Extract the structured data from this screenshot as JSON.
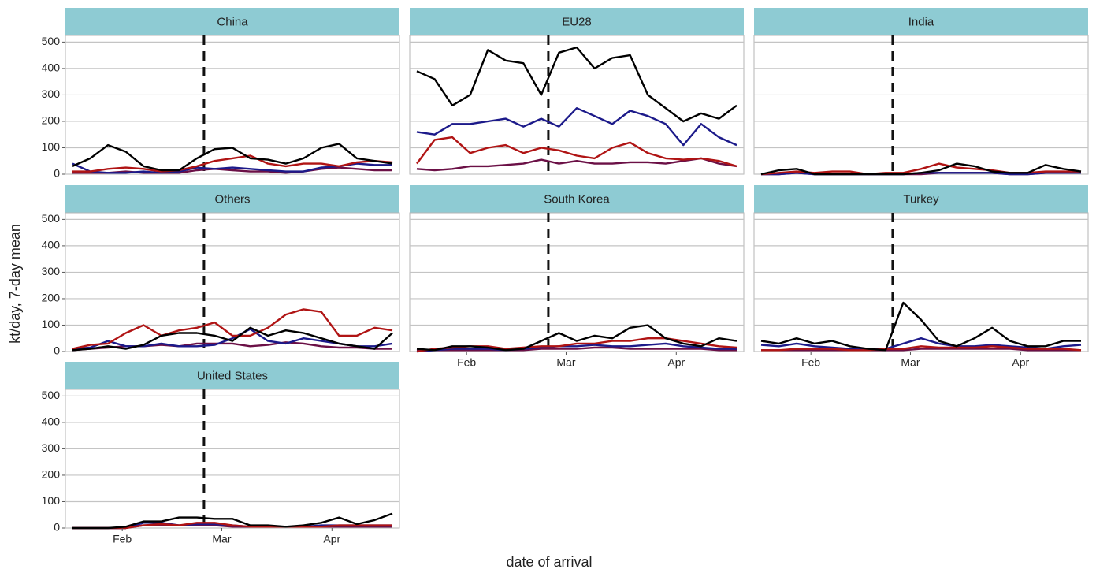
{
  "chart_data": {
    "type": "line",
    "xlabel": "date of arrival",
    "ylabel": "kt/day, 7-day mean",
    "xlim": [
      16,
      110
    ],
    "ylim": [
      0,
      525
    ],
    "xticks": [
      {
        "value": 32,
        "label": "Feb"
      },
      {
        "value": 60,
        "label": "Mar"
      },
      {
        "value": 91,
        "label": "Apr"
      }
    ],
    "yticks": [
      0,
      100,
      200,
      300,
      400,
      500
    ],
    "grid": true,
    "vline": 55,
    "x": [
      18,
      23,
      28,
      33,
      38,
      43,
      48,
      53,
      58,
      63,
      68,
      73,
      78,
      83,
      88,
      93,
      98,
      103,
      108
    ],
    "panels": [
      {
        "title": "China",
        "series": [
          {
            "color": "#6b1046",
            "values": [
              5,
              5,
              5,
              10,
              5,
              5,
              5,
              15,
              20,
              15,
              10,
              10,
              5,
              10,
              20,
              25,
              20,
              15,
              15
            ]
          },
          {
            "color": "#1c1a8a",
            "values": [
              40,
              10,
              5,
              5,
              10,
              5,
              10,
              25,
              20,
              25,
              20,
              15,
              10,
              10,
              25,
              30,
              40,
              35,
              35
            ]
          },
          {
            "color": "#b01414",
            "values": [
              10,
              10,
              20,
              25,
              20,
              10,
              15,
              30,
              50,
              60,
              70,
              40,
              30,
              40,
              40,
              30,
              45,
              50,
              45
            ]
          },
          {
            "color": "#000000",
            "values": [
              30,
              60,
              110,
              85,
              30,
              15,
              15,
              60,
              95,
              100,
              60,
              55,
              40,
              60,
              100,
              115,
              60,
              50,
              40
            ]
          }
        ]
      },
      {
        "title": "EU28",
        "series": [
          {
            "color": "#6b1046",
            "values": [
              20,
              15,
              20,
              30,
              30,
              35,
              40,
              55,
              40,
              50,
              40,
              40,
              45,
              45,
              40,
              50,
              60,
              40,
              30
            ]
          },
          {
            "color": "#1c1a8a",
            "values": [
              160,
              150,
              190,
              190,
              200,
              210,
              180,
              210,
              180,
              250,
              220,
              190,
              240,
              220,
              190,
              110,
              190,
              140,
              110
            ]
          },
          {
            "color": "#b01414",
            "values": [
              40,
              130,
              140,
              80,
              100,
              110,
              80,
              100,
              90,
              70,
              60,
              100,
              120,
              80,
              60,
              55,
              60,
              50,
              30
            ]
          },
          {
            "color": "#000000",
            "values": [
              390,
              360,
              260,
              300,
              470,
              430,
              420,
              300,
              460,
              480,
              400,
              440,
              450,
              300,
              250,
              200,
              230,
              210,
              260
            ]
          }
        ]
      },
      {
        "title": "India",
        "series": [
          {
            "color": "#6b1046",
            "values": [
              0,
              0,
              5,
              0,
              0,
              0,
              0,
              0,
              0,
              0,
              5,
              5,
              5,
              5,
              0,
              0,
              5,
              5,
              5
            ]
          },
          {
            "color": "#1c1a8a",
            "values": [
              0,
              0,
              5,
              0,
              0,
              0,
              0,
              0,
              0,
              5,
              5,
              5,
              5,
              5,
              0,
              0,
              5,
              5,
              5
            ]
          },
          {
            "color": "#b01414",
            "values": [
              0,
              5,
              10,
              5,
              10,
              10,
              0,
              5,
              5,
              20,
              40,
              25,
              20,
              15,
              5,
              5,
              10,
              10,
              10
            ]
          },
          {
            "color": "#000000",
            "values": [
              0,
              15,
              20,
              0,
              0,
              0,
              0,
              0,
              0,
              5,
              15,
              40,
              30,
              10,
              5,
              5,
              35,
              20,
              10
            ]
          }
        ]
      },
      {
        "title": "Others",
        "series": [
          {
            "color": "#6b1046",
            "values": [
              5,
              10,
              15,
              20,
              20,
              25,
              20,
              30,
              30,
              30,
              20,
              25,
              35,
              30,
              20,
              15,
              15,
              10,
              10
            ]
          },
          {
            "color": "#1c1a8a",
            "values": [
              10,
              15,
              40,
              20,
              20,
              30,
              20,
              20,
              25,
              50,
              85,
              40,
              30,
              50,
              40,
              30,
              20,
              20,
              30
            ]
          },
          {
            "color": "#b01414",
            "values": [
              10,
              25,
              30,
              70,
              100,
              60,
              80,
              90,
              110,
              60,
              60,
              90,
              140,
              160,
              150,
              60,
              60,
              90,
              80
            ]
          },
          {
            "color": "#000000",
            "values": [
              5,
              10,
              20,
              10,
              25,
              60,
              70,
              70,
              60,
              40,
              90,
              60,
              80,
              70,
              50,
              30,
              20,
              10,
              70
            ]
          }
        ]
      },
      {
        "title": "South Korea",
        "series": [
          {
            "color": "#6b1046",
            "values": [
              5,
              5,
              5,
              5,
              5,
              5,
              5,
              10,
              10,
              10,
              15,
              15,
              10,
              10,
              10,
              10,
              10,
              5,
              5
            ]
          },
          {
            "color": "#1c1a8a",
            "values": [
              0,
              5,
              10,
              10,
              10,
              5,
              10,
              15,
              20,
              20,
              25,
              20,
              20,
              25,
              30,
              20,
              15,
              10,
              10
            ]
          },
          {
            "color": "#b01414",
            "values": [
              0,
              10,
              15,
              20,
              20,
              10,
              15,
              20,
              20,
              30,
              30,
              40,
              40,
              50,
              50,
              40,
              30,
              20,
              15
            ]
          },
          {
            "color": "#000000",
            "values": [
              10,
              5,
              20,
              20,
              15,
              5,
              10,
              40,
              70,
              40,
              60,
              50,
              90,
              100,
              50,
              30,
              20,
              50,
              40
            ]
          }
        ]
      },
      {
        "title": "Turkey",
        "series": [
          {
            "color": "#6b1046",
            "values": [
              5,
              5,
              5,
              5,
              5,
              5,
              5,
              5,
              5,
              10,
              10,
              10,
              10,
              10,
              10,
              5,
              5,
              5,
              5
            ]
          },
          {
            "color": "#1c1a8a",
            "values": [
              25,
              20,
              30,
              20,
              15,
              10,
              10,
              10,
              30,
              50,
              30,
              20,
              20,
              25,
              20,
              15,
              10,
              20,
              25
            ]
          },
          {
            "color": "#b01414",
            "values": [
              5,
              5,
              10,
              10,
              10,
              5,
              5,
              10,
              10,
              20,
              15,
              15,
              15,
              20,
              15,
              10,
              10,
              10,
              5
            ]
          },
          {
            "color": "#000000",
            "values": [
              40,
              30,
              50,
              30,
              40,
              20,
              10,
              5,
              185,
              120,
              40,
              20,
              50,
              90,
              40,
              20,
              20,
              40,
              40
            ]
          }
        ]
      },
      {
        "title": "United States",
        "series": [
          {
            "color": "#6b1046",
            "values": [
              0,
              0,
              0,
              0,
              10,
              10,
              10,
              10,
              10,
              5,
              5,
              5,
              5,
              5,
              5,
              5,
              5,
              5,
              5
            ]
          },
          {
            "color": "#1c1a8a",
            "values": [
              0,
              0,
              0,
              0,
              20,
              20,
              10,
              15,
              15,
              10,
              5,
              5,
              5,
              5,
              10,
              10,
              10,
              10,
              10
            ]
          },
          {
            "color": "#b01414",
            "values": [
              0,
              0,
              0,
              0,
              10,
              15,
              10,
              20,
              20,
              10,
              5,
              5,
              5,
              5,
              5,
              10,
              10,
              10,
              10
            ]
          },
          {
            "color": "#000000",
            "values": [
              0,
              0,
              0,
              5,
              25,
              25,
              40,
              40,
              35,
              35,
              10,
              10,
              5,
              10,
              20,
              40,
              15,
              30,
              55
            ]
          }
        ]
      }
    ]
  }
}
